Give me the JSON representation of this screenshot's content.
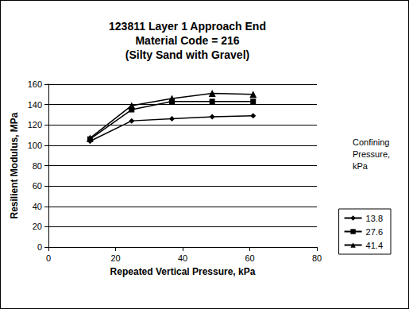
{
  "chart_data": {
    "type": "line",
    "title": "123811 Layer 1 Approach End\nMaterial Code = 216\n(Silty Sand with Gravel)",
    "x_label": "Repeated Vertical Pressure, kPa",
    "y_label": "Resilient Modulus, MPa",
    "legend_title": "Confining Pressure, kPa",
    "series": [
      {
        "name": "13.8",
        "color": "#000000",
        "marker": "diamond",
        "line_style": "solid",
        "x": [
          12.4,
          24.8,
          36.8,
          48.8,
          61.0
        ],
        "values": [
          104,
          124,
          126,
          128,
          129
        ]
      },
      {
        "name": "27.6",
        "color": "#000000",
        "marker": "square",
        "line_style": "solid",
        "x": [
          12.4,
          24.8,
          36.8,
          48.8,
          61.0
        ],
        "values": [
          106,
          135,
          143,
          143,
          143
        ]
      },
      {
        "name": "41.4",
        "color": "#000000",
        "marker": "triangle",
        "line_style": "solid",
        "x": [
          12.4,
          24.8,
          36.8,
          48.8,
          61.0
        ],
        "values": [
          107,
          139,
          146,
          151,
          150
        ]
      }
    ],
    "xlim": [
      0,
      80
    ],
    "xticks": [
      0,
      20,
      40,
      60,
      80
    ],
    "ylim": [
      0,
      160
    ],
    "yticks": [
      0,
      20,
      40,
      60,
      80,
      100,
      120,
      140,
      160
    ],
    "grid": true,
    "legend": "right"
  }
}
